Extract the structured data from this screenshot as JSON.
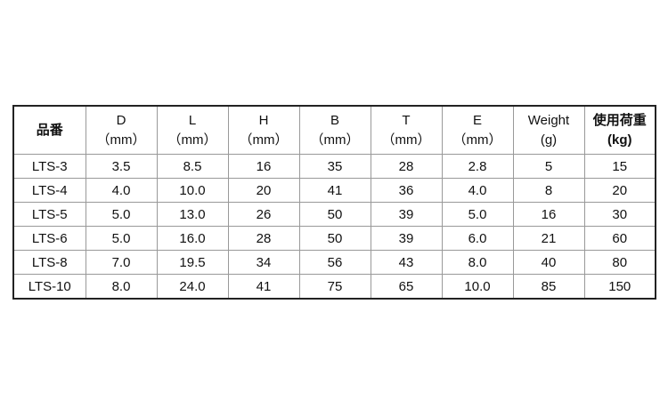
{
  "table": {
    "headers": [
      {
        "name": "品番",
        "unit": ""
      },
      {
        "name": "D",
        "unit": "（mm）"
      },
      {
        "name": "L",
        "unit": "（mm）"
      },
      {
        "name": "H",
        "unit": "（mm）"
      },
      {
        "name": "B",
        "unit": "（mm）"
      },
      {
        "name": "T",
        "unit": "（mm）"
      },
      {
        "name": "E",
        "unit": "（mm）"
      },
      {
        "name": "Weight",
        "unit": "(g)"
      },
      {
        "name": "使用荷重",
        "unit": "(kg)"
      }
    ],
    "rows": [
      [
        "LTS-3",
        "3.5",
        "8.5",
        "16",
        "35",
        "28",
        "2.8",
        "5",
        "15"
      ],
      [
        "LTS-4",
        "4.0",
        "10.0",
        "20",
        "41",
        "36",
        "4.0",
        "8",
        "20"
      ],
      [
        "LTS-5",
        "5.0",
        "13.0",
        "26",
        "50",
        "39",
        "5.0",
        "16",
        "30"
      ],
      [
        "LTS-6",
        "5.0",
        "16.0",
        "28",
        "50",
        "39",
        "6.0",
        "21",
        "60"
      ],
      [
        "LTS-8",
        "7.0",
        "19.5",
        "34",
        "56",
        "43",
        "8.0",
        "40",
        "80"
      ],
      [
        "LTS-10",
        "8.0",
        "24.0",
        "41",
        "75",
        "65",
        "10.0",
        "85",
        "150"
      ]
    ]
  }
}
